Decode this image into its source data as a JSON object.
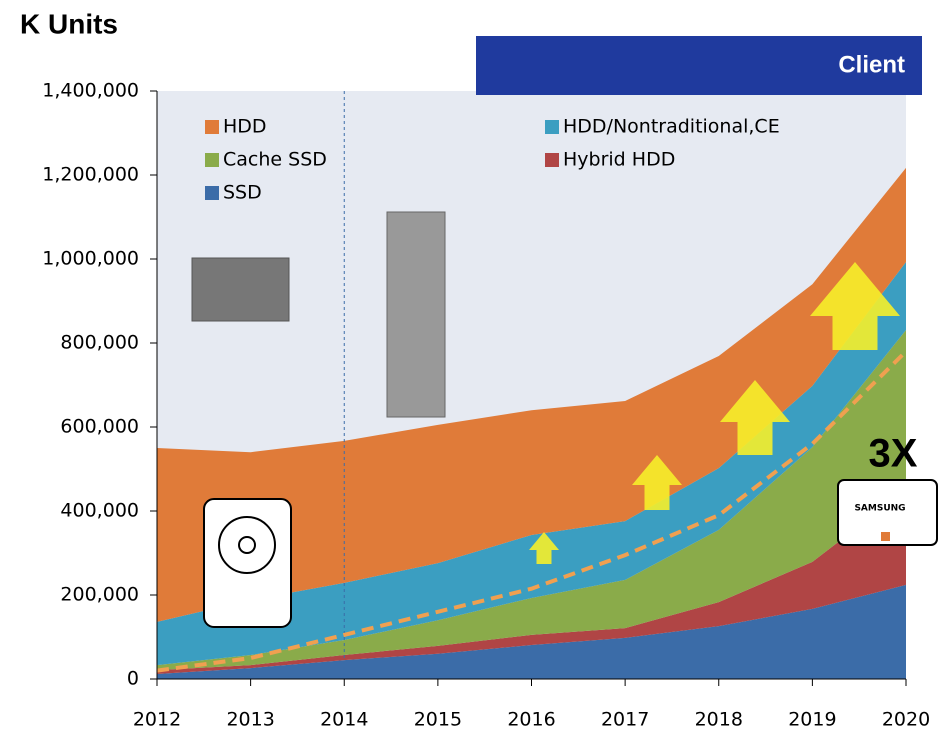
{
  "chart_data": {
    "type": "stacked_area",
    "title": "K Units",
    "badge": "Client",
    "annotation": "3X",
    "brand": "SAMSUNG",
    "categories": [
      "2012",
      "2013",
      "2014",
      "2015",
      "2016",
      "2017",
      "2018",
      "2019",
      "2020"
    ],
    "series": [
      {
        "name": "SSD",
        "color": "#3b6ca8",
        "values": [
          12000,
          26000,
          45000,
          60000,
          81000,
          98000,
          126000,
          167000,
          224000
        ]
      },
      {
        "name": "Hybrid HDD",
        "color": "#b04545",
        "values": [
          9000,
          7000,
          12000,
          19000,
          24000,
          23000,
          57000,
          112000,
          226000
        ]
      },
      {
        "name": "Cache SSD",
        "color": "#8aab4a",
        "values": [
          12000,
          24000,
          36000,
          61000,
          88000,
          115000,
          172000,
          273000,
          381000
        ]
      },
      {
        "name": "HDD/Nontraditional,CE",
        "color": "#3b9ec1",
        "values": [
          103000,
          131000,
          136000,
          136000,
          150000,
          140000,
          147000,
          146000,
          162000
        ]
      },
      {
        "name": "HDD",
        "color": "#e07b39",
        "values": [
          414000,
          352000,
          338000,
          329000,
          297000,
          286000,
          267000,
          242000,
          224000
        ]
      }
    ],
    "trend_line": {
      "color": "#f0a050",
      "values": [
        20000,
        50000,
        105000,
        160000,
        215000,
        295000,
        390000,
        560000,
        780000
      ]
    },
    "ylim": [
      0,
      1400000
    ],
    "yticks": [
      0,
      {
        "value": 200000,
        "label": "200,000"
      },
      {
        "value": 400000,
        "label": "400,000"
      },
      {
        "value": 600000,
        "label": "600,000"
      },
      {
        "value": 800000,
        "label": "800,000"
      },
      {
        "value": 1000000,
        "label": "1,000,000"
      },
      {
        "value": 1200000,
        "label": "1,200,000"
      },
      {
        "value": 1400000,
        "label": "1,400,000"
      }
    ]
  }
}
